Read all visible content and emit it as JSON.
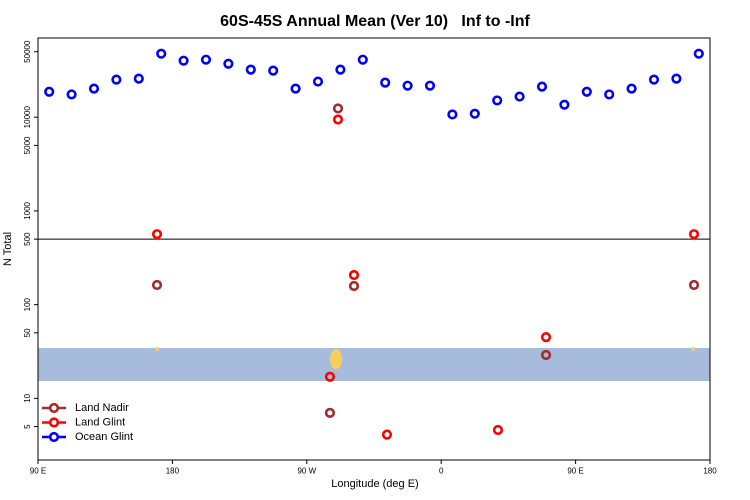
{
  "chart_data": {
    "type": "scatter",
    "title": "60S-45S Annual Mean (Ver 10)   Inf to -Inf",
    "x_label": "Longitude (deg E)",
    "y_label": "N Total",
    "xlim": [
      90,
      540
    ],
    "xticks": [
      {
        "value": 90,
        "label": "90 E"
      },
      180,
      {
        "value": 270,
        "label": "90 W"
      },
      {
        "value": 360,
        "label": "0"
      },
      {
        "value": 450,
        "label": "90 E"
      },
      {
        "value": 540,
        "label": "180"
      }
    ],
    "ylim": [
      2.2,
      70000
    ],
    "yticks": [
      5,
      10,
      50,
      100,
      500,
      1000,
      5000,
      10000,
      50000
    ],
    "log_y": true,
    "hline": 500,
    "legend": "bottom-left",
    "series": [
      {
        "name": "Land Nadir",
        "color": "#a52a2a",
        "x": [
          169.7,
          290.9,
          301.6,
          430.2,
          285.5,
          529.3
        ],
        "values": [
          162,
          12400,
          158,
          29,
          7,
          162
        ]
      },
      {
        "name": "Land Glint",
        "color": "#ff0000",
        "x": [
          169.7,
          290.9,
          301.6,
          430.2,
          285.5,
          323.7,
          398,
          529.3
        ],
        "values": [
          565,
          9460,
          207,
          45,
          17,
          4.1,
          4.6,
          565
        ]
      },
      {
        "name": "Ocean Glint",
        "color": "#0000ff",
        "x": [
          97.5,
          112.5,
          127.5,
          142.5,
          157.5,
          172.5,
          187.5,
          202.5,
          217.5,
          232.5,
          247.5,
          262.5,
          277.5,
          292.5,
          307.5,
          322.5,
          337.5,
          352.5,
          367.5,
          382.5,
          397.5,
          412.5,
          427.5,
          442.5,
          457.5,
          472.5,
          487.5,
          502.5,
          517.5,
          532.5
        ],
        "values": [
          18700,
          17500,
          20200,
          25200,
          25800,
          47600,
          40100,
          41100,
          37200,
          32200,
          31400,
          20200,
          24000,
          32200,
          41100,
          23400,
          21700,
          21700,
          10700,
          10900,
          15100,
          16600,
          21200,
          13600,
          18700,
          17500,
          20200,
          25200,
          25800,
          47600
        ]
      }
    ]
  }
}
